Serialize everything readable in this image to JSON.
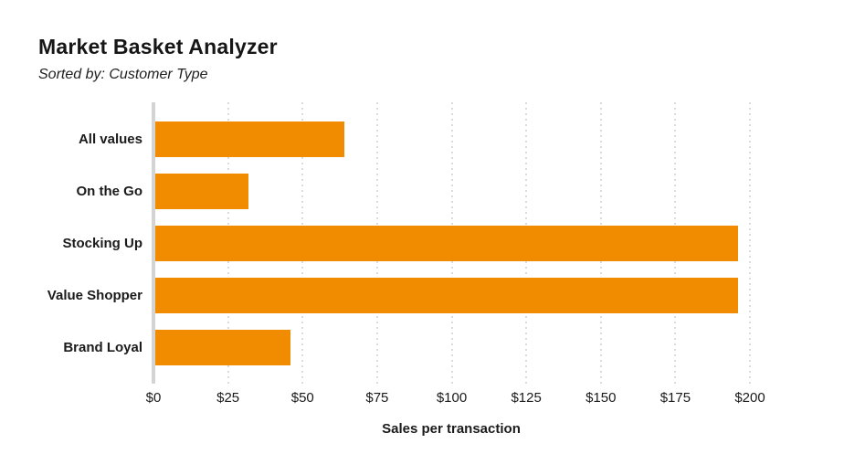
{
  "header": {
    "title": "Market Basket Analyzer",
    "subtitle": "Sorted by: Customer Type"
  },
  "chart_data": {
    "type": "bar",
    "orientation": "horizontal",
    "title": "Market Basket Analyzer",
    "subtitle": "Sorted by: Customer Type",
    "categories": [
      "All values",
      "On the Go",
      "Stocking Up",
      "Value Shopper",
      "Brand Loyal"
    ],
    "values": [
      64,
      32,
      196,
      196,
      46
    ],
    "xlabel": "Sales per transaction",
    "ylabel": "",
    "xlim": [
      0,
      200
    ],
    "xticks": [
      0,
      25,
      50,
      75,
      100,
      125,
      150,
      175,
      200
    ],
    "xtick_labels": [
      "$0",
      "$25",
      "$50",
      "$75",
      "$100",
      "$125",
      "$150",
      "$175",
      "$200"
    ],
    "grid": "vertical-dotted",
    "legend": "none"
  },
  "colors": {
    "bar": "#F18C00",
    "axis_line": "#D4D4D4",
    "gridline": "#DBDBDB",
    "text": "#1B1B1B",
    "background": "#FFFFFF"
  }
}
